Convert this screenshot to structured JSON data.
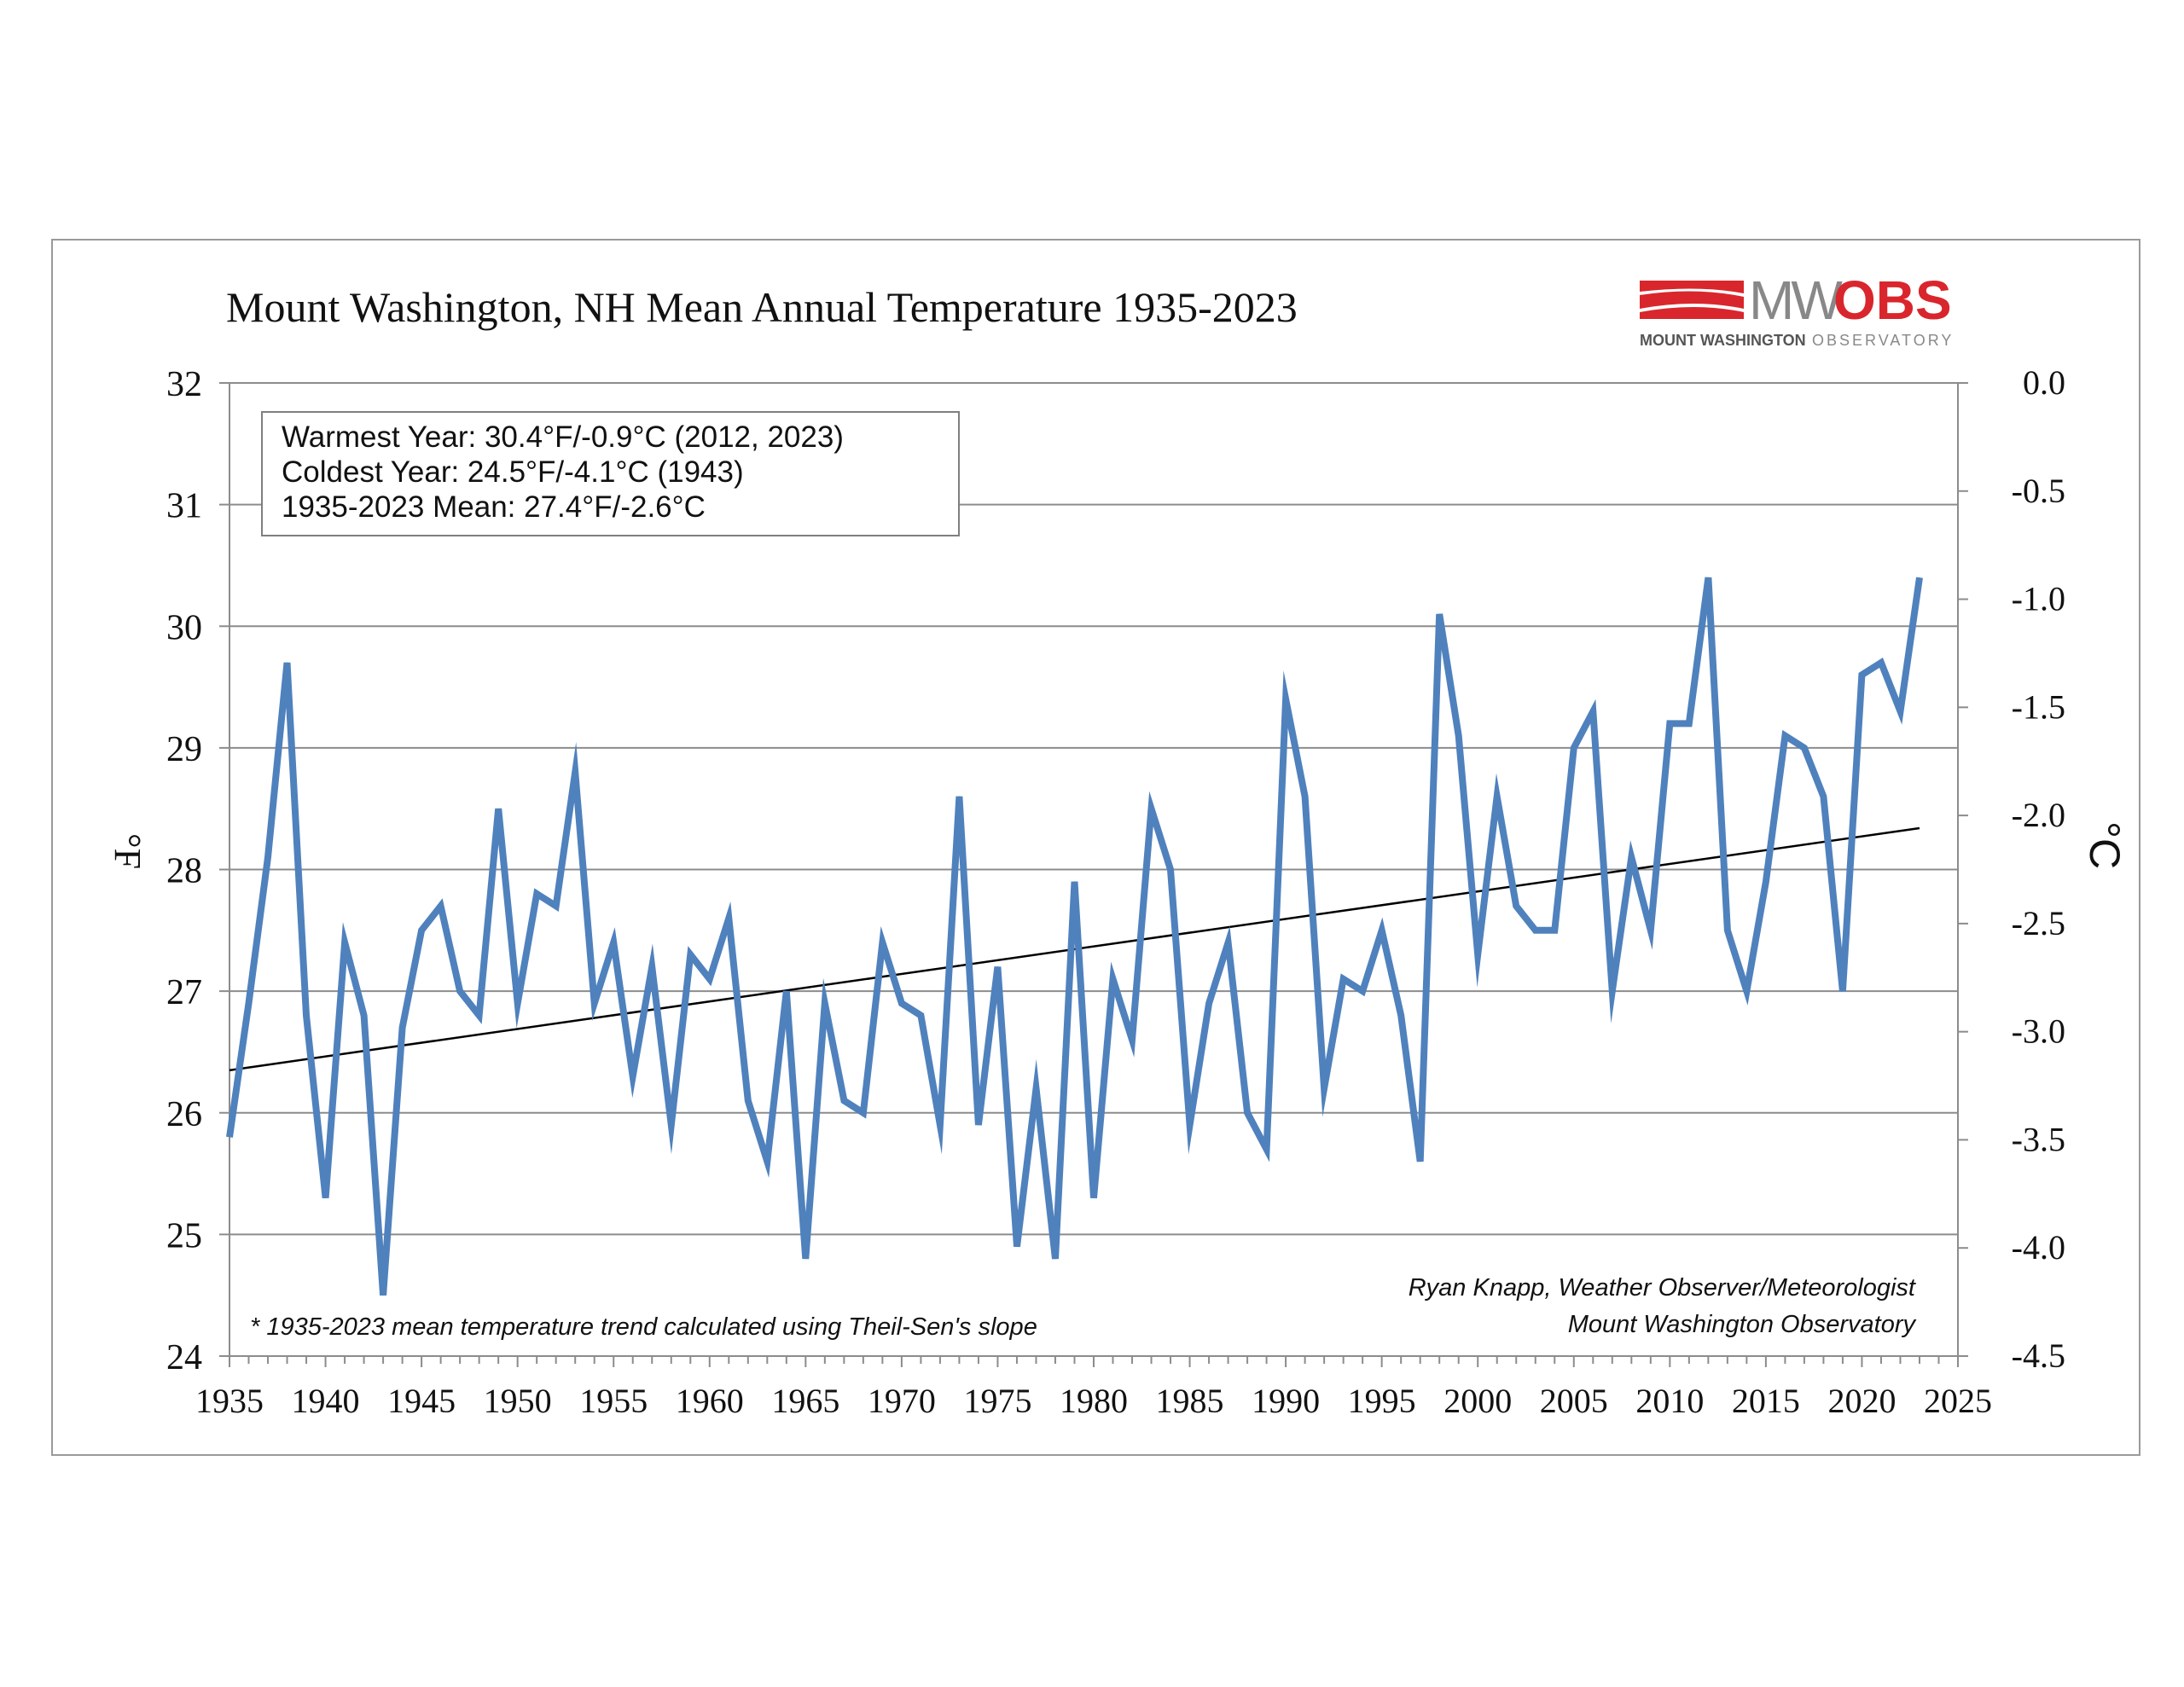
{
  "chart_data": {
    "type": "line",
    "title": "Mount Washington, NH Mean Annual Temperature 1935-2023",
    "ylabel_left": "°F",
    "ylabel_right": "°C",
    "xlim": [
      1935,
      2025
    ],
    "ylim": [
      24,
      32
    ],
    "ylim_right": [
      -4.5,
      0.0
    ],
    "x_ticks": [
      "1935",
      "1940",
      "1945",
      "1950",
      "1955",
      "1960",
      "1965",
      "1970",
      "1975",
      "1980",
      "1985",
      "1990",
      "1995",
      "2000",
      "2005",
      "2010",
      "2015",
      "2020",
      "2025"
    ],
    "y_ticks_left": [
      "24",
      "25",
      "26",
      "27",
      "28",
      "29",
      "30",
      "31",
      "32"
    ],
    "y_ticks_right": [
      "-4.5",
      "-4.0",
      "-3.5",
      "-3.0",
      "-2.5",
      "-2.0",
      "-1.5",
      "-1.0",
      "-0.5",
      "0.0"
    ],
    "grid": true,
    "series": [
      {
        "name": "",
        "color": "#4f81bd",
        "x": [
          1935,
          1936,
          1937,
          1938,
          1939,
          1940,
          1941,
          1942,
          1943,
          1944,
          1945,
          1946,
          1947,
          1948,
          1949,
          1950,
          1951,
          1952,
          1953,
          1954,
          1955,
          1956,
          1957,
          1958,
          1959,
          1960,
          1961,
          1962,
          1963,
          1964,
          1965,
          1966,
          1967,
          1968,
          1969,
          1970,
          1971,
          1972,
          1973,
          1974,
          1975,
          1976,
          1977,
          1978,
          1979,
          1980,
          1981,
          1982,
          1983,
          1984,
          1985,
          1986,
          1987,
          1988,
          1989,
          1990,
          1991,
          1992,
          1993,
          1994,
          1995,
          1996,
          1997,
          1998,
          1999,
          2000,
          2001,
          2002,
          2003,
          2004,
          2005,
          2006,
          2007,
          2008,
          2009,
          2010,
          2011,
          2012,
          2013,
          2014,
          2015,
          2016,
          2017,
          2018,
          2019,
          2020,
          2021,
          2022,
          2023
        ],
        "y": [
          25.8,
          26.9,
          28.1,
          29.7,
          26.8,
          25.3,
          27.4,
          26.8,
          24.5,
          26.7,
          27.5,
          27.7,
          27.0,
          26.8,
          28.5,
          26.9,
          27.8,
          27.7,
          28.8,
          26.9,
          27.4,
          26.3,
          27.2,
          25.9,
          27.3,
          27.1,
          27.6,
          26.1,
          25.6,
          27.0,
          24.8,
          26.9,
          26.1,
          26.0,
          27.4,
          26.9,
          26.8,
          25.9,
          28.6,
          25.9,
          27.2,
          24.9,
          26.2,
          24.8,
          27.9,
          25.3,
          27.1,
          26.6,
          28.5,
          28.0,
          25.9,
          26.9,
          27.4,
          26.0,
          25.7,
          29.4,
          28.6,
          26.2,
          27.1,
          27.0,
          27.5,
          26.8,
          25.6,
          30.1,
          29.1,
          27.3,
          28.6,
          27.7,
          27.5,
          27.5,
          29.0,
          29.3,
          27.0,
          28.1,
          27.5,
          29.2,
          29.2,
          30.4,
          27.5,
          27.0,
          27.9,
          29.1,
          29.0,
          28.6,
          27.0,
          29.6,
          29.7,
          29.3,
          30.4
        ]
      }
    ],
    "trend": {
      "label": "Theil-Sen trend",
      "color": "#000000",
      "x": [
        1935,
        2023
      ],
      "y": [
        26.35,
        28.34
      ]
    },
    "annotations": {
      "stats": [
        "Warmest Year: 30.4°F/-0.9°C (2012, 2023)",
        "Coldest Year: 24.5°F/-4.1°C (1943)",
        "1935-2023 Mean: 27.4°F/-2.6°C"
      ],
      "footnote": "* 1935-2023 mean temperature trend calculated using Theil-Sen's slope",
      "credit_line1": "Ryan Knapp, Weather Observer/Meteorologist",
      "credit_line2": "Mount Washington Observatory"
    }
  },
  "logo": {
    "text_mw": "MW",
    "text_obs": "OBS",
    "subtitle_bold": "MOUNT WASHINGTON",
    "subtitle_light": "OBSERVATORY",
    "color": "#d9262c"
  }
}
